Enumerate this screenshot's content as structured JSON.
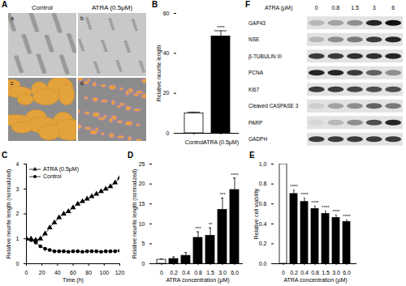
{
  "panel_a": {
    "title": "A",
    "columns": [
      "Control",
      "ATRA (0.5μM)"
    ],
    "images": [
      "a",
      "b",
      "c",
      "d"
    ]
  },
  "chart_data": [
    {
      "type": "bar",
      "title": "B",
      "categories": [
        "Control",
        "ATRA (0.5μM)"
      ],
      "values": [
        10,
        48.5
      ],
      "errors": [
        0.6,
        2.8
      ],
      "colors": [
        "white",
        "black"
      ],
      "annotations": [
        null,
        "****"
      ],
      "ylabel": "Relative neurite length",
      "ylim": [
        0,
        60
      ],
      "yticks": [
        0,
        20,
        40,
        60
      ]
    },
    {
      "type": "line",
      "title": "C",
      "xlabel": "Time (h)",
      "ylabel": "Relative neurite length (normalized)",
      "x": [
        0,
        6,
        12,
        18,
        24,
        30,
        36,
        42,
        48,
        54,
        60,
        66,
        72,
        78,
        84,
        90,
        96,
        102,
        108,
        114,
        120
      ],
      "series": [
        {
          "name": "ATRA (0.5μM)",
          "color": "black",
          "marker": "triangle",
          "values": [
            1.0,
            1.0,
            0.95,
            1.0,
            1.2,
            1.45,
            1.65,
            1.85,
            2.0,
            2.1,
            2.25,
            2.4,
            2.5,
            2.6,
            2.7,
            2.8,
            2.9,
            3.0,
            3.1,
            3.25,
            3.45
          ]
        },
        {
          "name": "Control",
          "color": "black",
          "marker": "circle",
          "values": [
            1.0,
            0.95,
            0.85,
            0.7,
            0.6,
            0.55,
            0.5,
            0.5,
            0.5,
            0.48,
            0.5,
            0.5,
            0.48,
            0.5,
            0.5,
            0.5,
            0.48,
            0.5,
            0.5,
            0.5,
            0.52
          ]
        }
      ],
      "xlim": [
        0,
        120
      ],
      "xticks": [
        0,
        20,
        40,
        60,
        80,
        100,
        120
      ],
      "ylim": [
        0,
        4
      ],
      "yticks": [
        0,
        1,
        2,
        3,
        4
      ],
      "legend": "top-left"
    },
    {
      "type": "bar",
      "title": "D",
      "xlabel": "ATRA concentration (μM)",
      "ylabel": "Relative neurite length (normalized)",
      "categories": [
        "0",
        "0.2",
        "0.4",
        "0.8",
        "1.5",
        "3.0",
        "6.0"
      ],
      "values": [
        1,
        1.2,
        2,
        6.5,
        7,
        13.5,
        18.5
      ],
      "errors": [
        0.2,
        0.5,
        0.8,
        1.5,
        2,
        3,
        3
      ],
      "colors": [
        "white",
        "black",
        "black",
        "black",
        "black",
        "black",
        "black"
      ],
      "annotations": [
        null,
        null,
        null,
        "***",
        "**",
        "***",
        "****"
      ],
      "ylim": [
        0,
        25
      ],
      "yticks": [
        0,
        5,
        10,
        15,
        20,
        25
      ]
    },
    {
      "type": "bar",
      "title": "E",
      "xlabel": "ATRA concentration (μM)",
      "ylabel": "Relative cell viability",
      "categories": [
        "0",
        "0.2",
        "0.4",
        "0.8",
        "1.5",
        "3.0",
        "6.0"
      ],
      "values": [
        1.0,
        0.7,
        0.62,
        0.55,
        0.5,
        0.46,
        0.42
      ],
      "errors": [
        0.01,
        0.04,
        0.04,
        0.03,
        0.03,
        0.03,
        0.02
      ],
      "colors": [
        "white",
        "black",
        "black",
        "black",
        "black",
        "black",
        "black"
      ],
      "annotations": [
        null,
        "****",
        "****",
        "****",
        "****",
        "****",
        "****"
      ],
      "ylim": [
        0,
        1
      ],
      "yticks": [
        {
          "value": 0,
          "label": "0.0"
        },
        0.2,
        0.4,
        0.6,
        0.8,
        {
          "value": 1,
          "label": "1.0"
        }
      ]
    }
  ],
  "panel_f": {
    "title": "F",
    "header": "ATRA (μM)",
    "lanes": [
      "0",
      "0.8",
      "1.5",
      "3",
      "6"
    ],
    "rows": [
      {
        "label": "GAP43",
        "intensities": [
          0.2,
          0.3,
          0.4,
          0.9,
          1.0
        ]
      },
      {
        "label": "NSE",
        "intensities": [
          0.2,
          0.4,
          0.5,
          0.8,
          0.9
        ]
      },
      {
        "label": "β-TUBULIN III",
        "intensities": [
          0.8,
          0.8,
          0.85,
          0.85,
          0.9
        ]
      },
      {
        "label": "PCNA",
        "intensities": [
          0.9,
          0.9,
          0.8,
          0.6,
          0.4
        ]
      },
      {
        "label": "Ki67",
        "intensities": [
          0.8,
          0.8,
          0.75,
          0.7,
          0.7
        ]
      },
      {
        "label": "Cleaved CASPASE 3",
        "intensities": [
          0.1,
          0.3,
          0.4,
          0.6,
          0.5
        ]
      },
      {
        "label": "PARP",
        "intensities": [
          0.05,
          0.2,
          0.4,
          0.7,
          0.9
        ]
      },
      {
        "label": "GADPH",
        "intensities": [
          0.8,
          0.8,
          0.8,
          0.8,
          0.8
        ]
      }
    ]
  }
}
